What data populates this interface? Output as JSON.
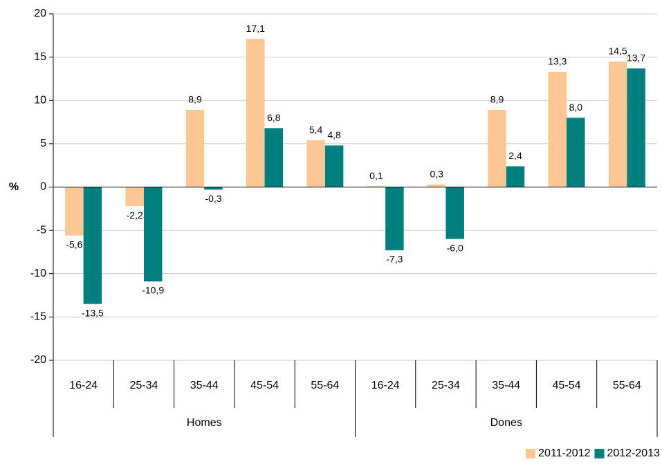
{
  "chart_data": {
    "type": "bar",
    "ylabel": "%",
    "groups": [
      {
        "label": "Homes",
        "categories": [
          "16-24",
          "25-34",
          "35-44",
          "45-54",
          "55-64"
        ]
      },
      {
        "label": "Dones",
        "categories": [
          "16-24",
          "25-34",
          "35-44",
          "45-54",
          "55-64"
        ]
      }
    ],
    "series": [
      {
        "name": "2011-2012",
        "color": "#fbc794",
        "values": [
          -5.6,
          -2.2,
          8.9,
          17.1,
          5.4,
          0.1,
          0.3,
          8.9,
          13.3,
          14.5
        ],
        "value_labels": [
          "-5,6",
          "-2,2",
          "8,9",
          "17,1",
          "5,4",
          "0,1",
          "0,3",
          "8,9",
          "13,3",
          "14,5"
        ]
      },
      {
        "name": "2012-2013",
        "color": "#007f7f",
        "values": [
          -13.5,
          -10.9,
          -0.3,
          6.8,
          4.8,
          -7.3,
          -6.0,
          2.4,
          8.0,
          13.7
        ],
        "value_labels": [
          "-13,5",
          "-10,9",
          "-0,3",
          "6,8",
          "4,8",
          "-7,3",
          "-6,0",
          "2,4",
          "8,0",
          "13,7"
        ]
      }
    ],
    "ylim": [
      -20,
      20
    ],
    "yticks": [
      -20,
      -15,
      -10,
      -5,
      0,
      5,
      10,
      15,
      20
    ],
    "grid": true,
    "legend": "bottom-right"
  }
}
